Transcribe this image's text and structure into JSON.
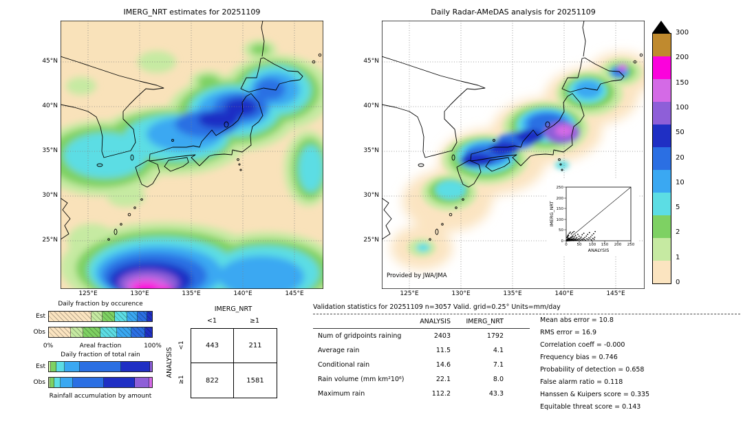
{
  "left_map": {
    "title": "IMERG_NRT estimates for 20251109"
  },
  "right_map": {
    "title": "Daily Radar-AMeDAS analysis for 20251109",
    "credit": "Provided by JWA/JMA"
  },
  "map_axes": {
    "lat": [
      "45°N",
      "40°N",
      "35°N",
      "30°N",
      "25°N"
    ],
    "lon": [
      "125°E",
      "130°E",
      "135°E",
      "140°E",
      "145°E"
    ]
  },
  "chart_data": {
    "units": "mm/day",
    "precip_scale": {
      "type": "heatmap",
      "boundaries": [
        300,
        200,
        150,
        100,
        50,
        20,
        10,
        5,
        2,
        1,
        0
      ],
      "colors_top_to_bottom": [
        "#c08a2e",
        "#fb02dc",
        "#d46ae6",
        "#8e5fd8",
        "#1f2fc4",
        "#2b6fe3",
        "#3aa8f2",
        "#5cdde4",
        "#7ed163",
        "#c6eaa2",
        "#fbe4c0"
      ],
      "over_color": "#000000"
    },
    "occurrence": {
      "type": "bar",
      "stacked": true,
      "title": "Daily fraction by occurence",
      "xlabel": "Areal fraction",
      "x_min_label": "0%",
      "x_max_label": "100%",
      "series": [
        {
          "name": "Est",
          "segments": [
            {
              "color": "#fbe4c0",
              "pct": 41
            },
            {
              "color": "#c6eaa2",
              "pct": 11
            },
            {
              "color": "#7ed163",
              "pct": 12
            },
            {
              "color": "#5cdde4",
              "pct": 12
            },
            {
              "color": "#3aa8f2",
              "pct": 10
            },
            {
              "color": "#2b6fe3",
              "pct": 9
            },
            {
              "color": "#1f2fc4",
              "pct": 5
            }
          ]
        },
        {
          "name": "Obs",
          "segments": [
            {
              "color": "#fbe4c0",
              "pct": 21
            },
            {
              "color": "#c6eaa2",
              "pct": 12
            },
            {
              "color": "#7ed163",
              "pct": 17
            },
            {
              "color": "#5cdde4",
              "pct": 16
            },
            {
              "color": "#3aa8f2",
              "pct": 14
            },
            {
              "color": "#2b6fe3",
              "pct": 13
            },
            {
              "color": "#1f2fc4",
              "pct": 7
            }
          ]
        }
      ]
    },
    "total_rain": {
      "type": "bar",
      "stacked": true,
      "title": "Daily fraction of total rain",
      "caption": "Rainfall accumulation by amount",
      "series": [
        {
          "name": "Est",
          "segments": [
            {
              "color": "#c6eaa2",
              "pct": 2
            },
            {
              "color": "#7ed163",
              "pct": 5
            },
            {
              "color": "#5cdde4",
              "pct": 8
            },
            {
              "color": "#3aa8f2",
              "pct": 15
            },
            {
              "color": "#2b6fe3",
              "pct": 40
            },
            {
              "color": "#1f2fc4",
              "pct": 28
            },
            {
              "color": "#8e5fd8",
              "pct": 2
            }
          ]
        },
        {
          "name": "Obs",
          "segments": [
            {
              "color": "#c6eaa2",
              "pct": 1
            },
            {
              "color": "#7ed163",
              "pct": 4
            },
            {
              "color": "#5cdde4",
              "pct": 6
            },
            {
              "color": "#3aa8f2",
              "pct": 12
            },
            {
              "color": "#2b6fe3",
              "pct": 30
            },
            {
              "color": "#1f2fc4",
              "pct": 30
            },
            {
              "color": "#8e5fd8",
              "pct": 14
            },
            {
              "color": "#d46ae6",
              "pct": 3
            }
          ]
        }
      ]
    },
    "contingency": {
      "type": "table",
      "col_group": "IMERG_NRT",
      "row_group": "ANALYSIS",
      "col_labels": [
        "<1",
        "≥1"
      ],
      "row_labels": [
        "<1",
        "≥1"
      ],
      "values": [
        [
          443,
          211
        ],
        [
          822,
          1581
        ]
      ]
    },
    "validation_table": {
      "type": "table",
      "title": "Validation statistics for 20251109  n=3057 Valid. grid=0.25° Units=mm/day",
      "columns": [
        "ANALYSIS",
        "IMERG_NRT"
      ],
      "rows": [
        {
          "label": "Num of gridpoints raining",
          "analysis": "2403",
          "imerg": "1792"
        },
        {
          "label": "Average rain",
          "analysis": "11.5",
          "imerg": "4.1"
        },
        {
          "label": "Conditional rain",
          "analysis": "14.6",
          "imerg": "7.1"
        },
        {
          "label": "Rain volume (mm km²10⁶)",
          "analysis": "22.1",
          "imerg": "8.0"
        },
        {
          "label": "Maximum rain",
          "analysis": "112.2",
          "imerg": "43.3"
        }
      ]
    },
    "scores": [
      {
        "label": "Mean abs error",
        "value": "10.8",
        "text": "Mean abs error =  10.8"
      },
      {
        "label": "RMS error",
        "value": "16.9",
        "text": "RMS error =  16.9"
      },
      {
        "label": "Correlation coeff",
        "value": "-0.000",
        "text": "Correlation coeff = -0.000"
      },
      {
        "label": "Frequency bias",
        "value": "0.746",
        "text": "Frequency bias =  0.746"
      },
      {
        "label": "Probability of detection",
        "value": "0.658",
        "text": "Probability of detection =  0.658"
      },
      {
        "label": "False alarm ratio",
        "value": "0.118",
        "text": "False alarm ratio =  0.118"
      },
      {
        "label": "Hanssen & Kuipers score",
        "value": "0.335",
        "text": "Hanssen & Kuipers score =  0.335"
      },
      {
        "label": "Equitable threat score",
        "value": "0.143",
        "text": "Equitable threat score =  0.143"
      }
    ],
    "inset_scatter": {
      "type": "scatter",
      "xlabel": "ANALYSIS",
      "ylabel": "IMERG_NRT",
      "xlim": [
        0,
        250
      ],
      "ylim": [
        0,
        250
      ],
      "ticks": [
        "0",
        "50",
        "100",
        "150",
        "200",
        "250"
      ],
      "points": [
        [
          1,
          0
        ],
        [
          2,
          1
        ],
        [
          2,
          4
        ],
        [
          3,
          0
        ],
        [
          3,
          2
        ],
        [
          3,
          15
        ],
        [
          4,
          1
        ],
        [
          4,
          6
        ],
        [
          5,
          0
        ],
        [
          5,
          3
        ],
        [
          5,
          22
        ],
        [
          6,
          1
        ],
        [
          6,
          9
        ],
        [
          6,
          18
        ],
        [
          7,
          2
        ],
        [
          7,
          5
        ],
        [
          8,
          0
        ],
        [
          8,
          12
        ],
        [
          8,
          28
        ],
        [
          9,
          3
        ],
        [
          9,
          24
        ],
        [
          10,
          1
        ],
        [
          10,
          6
        ],
        [
          11,
          2
        ],
        [
          12,
          8
        ],
        [
          12,
          35
        ],
        [
          13,
          0
        ],
        [
          13,
          4
        ],
        [
          14,
          10
        ],
        [
          15,
          2
        ],
        [
          16,
          6
        ],
        [
          16,
          40
        ],
        [
          17,
          1
        ],
        [
          18,
          13
        ],
        [
          19,
          3
        ],
        [
          20,
          7
        ],
        [
          20,
          32
        ],
        [
          21,
          1
        ],
        [
          22,
          16
        ],
        [
          23,
          4
        ],
        [
          24,
          9
        ],
        [
          25,
          2
        ],
        [
          25,
          38
        ],
        [
          26,
          20
        ],
        [
          27,
          5
        ],
        [
          28,
          1
        ],
        [
          29,
          12
        ],
        [
          30,
          3
        ],
        [
          30,
          43
        ],
        [
          31,
          8
        ],
        [
          33,
          18
        ],
        [
          34,
          2
        ],
        [
          35,
          6
        ],
        [
          36,
          25
        ],
        [
          37,
          4
        ],
        [
          38,
          10
        ],
        [
          40,
          2
        ],
        [
          41,
          15
        ],
        [
          43,
          6
        ],
        [
          45,
          30
        ],
        [
          46,
          3
        ],
        [
          48,
          9
        ],
        [
          50,
          21
        ],
        [
          52,
          5
        ],
        [
          54,
          12
        ],
        [
          56,
          2
        ],
        [
          58,
          17
        ],
        [
          60,
          7
        ],
        [
          62,
          28
        ],
        [
          64,
          4
        ],
        [
          66,
          11
        ],
        [
          68,
          35
        ],
        [
          70,
          6
        ],
        [
          72,
          15
        ],
        [
          75,
          3
        ],
        [
          78,
          22
        ],
        [
          80,
          9
        ],
        [
          83,
          30
        ],
        [
          85,
          5
        ],
        [
          88,
          14
        ],
        [
          90,
          38
        ],
        [
          92,
          8
        ],
        [
          95,
          18
        ],
        [
          98,
          4
        ],
        [
          100,
          26
        ],
        [
          103,
          11
        ],
        [
          106,
          33
        ],
        [
          108,
          7
        ],
        [
          110,
          16
        ],
        [
          112,
          43
        ]
      ]
    }
  }
}
